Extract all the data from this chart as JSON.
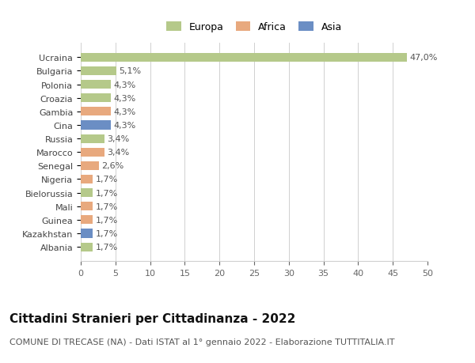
{
  "categories": [
    "Albania",
    "Kazakhstan",
    "Guinea",
    "Mali",
    "Bielorussia",
    "Nigeria",
    "Senegal",
    "Marocco",
    "Russia",
    "Cina",
    "Gambia",
    "Croazia",
    "Polonia",
    "Bulgaria",
    "Ucraina"
  ],
  "values": [
    1.7,
    1.7,
    1.7,
    1.7,
    1.7,
    1.7,
    2.6,
    3.4,
    3.4,
    4.3,
    4.3,
    4.3,
    4.3,
    5.1,
    47.0
  ],
  "labels": [
    "1,7%",
    "1,7%",
    "1,7%",
    "1,7%",
    "1,7%",
    "1,7%",
    "2,6%",
    "3,4%",
    "3,4%",
    "4,3%",
    "4,3%",
    "4,3%",
    "4,3%",
    "5,1%",
    "47,0%"
  ],
  "colors": [
    "#b5c98a",
    "#6b8ec4",
    "#e8a97e",
    "#e8a97e",
    "#b5c98a",
    "#e8a97e",
    "#e8a97e",
    "#e8a97e",
    "#b5c98a",
    "#6b8ec4",
    "#e8a97e",
    "#b5c98a",
    "#b5c98a",
    "#b5c98a",
    "#b5c98a"
  ],
  "legend_labels": [
    "Europa",
    "Africa",
    "Asia"
  ],
  "legend_colors": [
    "#b5c98a",
    "#e8a97e",
    "#6b8ec4"
  ],
  "title": "Cittadini Stranieri per Cittadinanza - 2022",
  "subtitle": "COMUNE DI TRECASE (NA) - Dati ISTAT al 1° gennaio 2022 - Elaborazione TUTTITALIA.IT",
  "xlim": [
    0,
    50
  ],
  "xticks": [
    0,
    5,
    10,
    15,
    20,
    25,
    30,
    35,
    40,
    45,
    50
  ],
  "bg_color": "#ffffff",
  "grid_color": "#d0d0d0",
  "bar_height": 0.65,
  "title_fontsize": 11,
  "subtitle_fontsize": 8,
  "label_fontsize": 8,
  "tick_fontsize": 8,
  "legend_fontsize": 9
}
